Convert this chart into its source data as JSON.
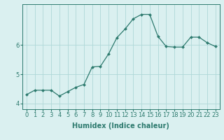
{
  "x": [
    0,
    1,
    2,
    3,
    4,
    5,
    6,
    7,
    8,
    9,
    10,
    11,
    12,
    13,
    14,
    15,
    16,
    17,
    18,
    19,
    20,
    21,
    22,
    23
  ],
  "y": [
    4.3,
    4.45,
    4.45,
    4.45,
    4.25,
    4.4,
    4.55,
    4.65,
    5.25,
    5.27,
    5.7,
    6.25,
    6.55,
    6.9,
    7.05,
    7.05,
    6.3,
    5.95,
    5.93,
    5.93,
    6.27,
    6.27,
    6.08,
    5.95
  ],
  "line_color": "#2d7a6e",
  "marker": "D",
  "markersize": 2.0,
  "linewidth": 0.9,
  "bg_color": "#daf0f0",
  "grid_color": "#aed8d8",
  "xlabel": "Humidex (Indice chaleur)",
  "xlabel_fontsize": 7,
  "tick_fontsize": 6,
  "yticks": [
    4,
    5,
    6
  ],
  "ylim": [
    3.8,
    7.4
  ],
  "xlim": [
    -0.5,
    23.5
  ],
  "title": ""
}
